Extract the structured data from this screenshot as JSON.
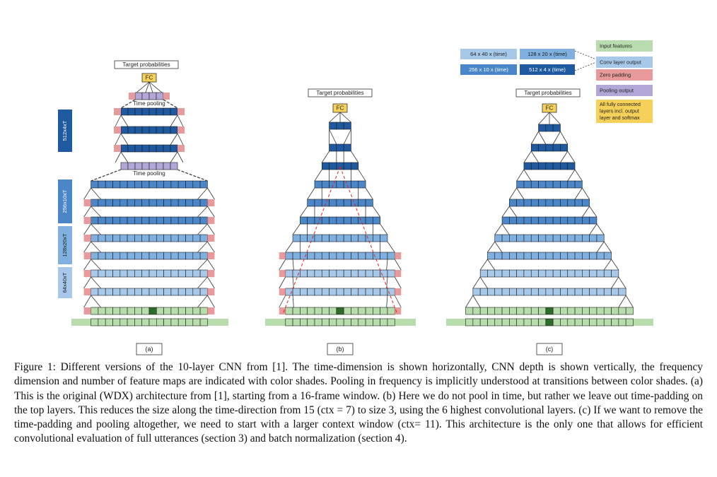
{
  "colors": {
    "input": "#b9dcae",
    "input_border": "#4d4d4d",
    "conv1": "#a8c8ea",
    "conv2": "#7fb0e0",
    "conv3": "#4a86c8",
    "conv4": "#1f5aa0",
    "conv_dark": "#1b4f8e",
    "pad": "#e89a9a",
    "pool": "#b3a7d8",
    "fc": "#f6d15a",
    "highlight": "#2f6b2a",
    "dashed_red": "#e0211f"
  },
  "legend": {
    "shape_labels": [
      "64 x 40 x (time)",
      "128 x 20 x (time)",
      "256 x 10 x (time)",
      "512 x 4  x (time)"
    ],
    "items": [
      {
        "label": "Input features",
        "color_key": "input"
      },
      {
        "label": "Conv layer output",
        "color_key": "conv1"
      },
      {
        "label": "Zero padding",
        "color_key": "pad"
      },
      {
        "label": "Pooling output",
        "color_key": "pool"
      },
      {
        "label": "All fully connected layers incl. output layer and  softmax",
        "color_key": "fc",
        "lines": [
          "All fully connected",
          "layers incl. output",
          "layer and  softmax"
        ]
      }
    ]
  },
  "panels": [
    {
      "id": "a",
      "label": "(a)",
      "target_label": "Target probabilities",
      "fc_label": "FC",
      "pool_labels": [
        "Time pooling",
        "Time pooling"
      ],
      "side_labels": [
        "512x4xT",
        "256x10xT",
        "128x20xT",
        "64x40xT"
      ]
    },
    {
      "id": "b",
      "label": "(b)",
      "target_label": "Target probabilities",
      "fc_label": "FC"
    },
    {
      "id": "c",
      "label": "(c)",
      "target_label": "Target probabilities",
      "fc_label": "FC"
    }
  ],
  "caption": "Figure 1: Different versions of the 10-layer CNN from [1]. The time-dimension is shown horizontally, CNN depth is shown vertically, the frequency dimension and number of feature maps are indicated with color shades. Pooling in frequency is implicitly understood at transitions between color shades. (a) This is the original (WDX) architecture from [1], starting from a 16-frame window. (b) Here we do not pool in time, but rather we leave out time-padding on the top layers. This reduces the size along the time-direction from 15 (ctx = 7) to size 3, using the 6 highest convolutional layers. (c) If we want to remove the time-padding and pooling altogether, we need to start with a larger context window (ctx= 11). This architecture is the only one that allows for efficient convolutional evaluation of full utterances (section 3) and batch normalization (section 4)."
}
